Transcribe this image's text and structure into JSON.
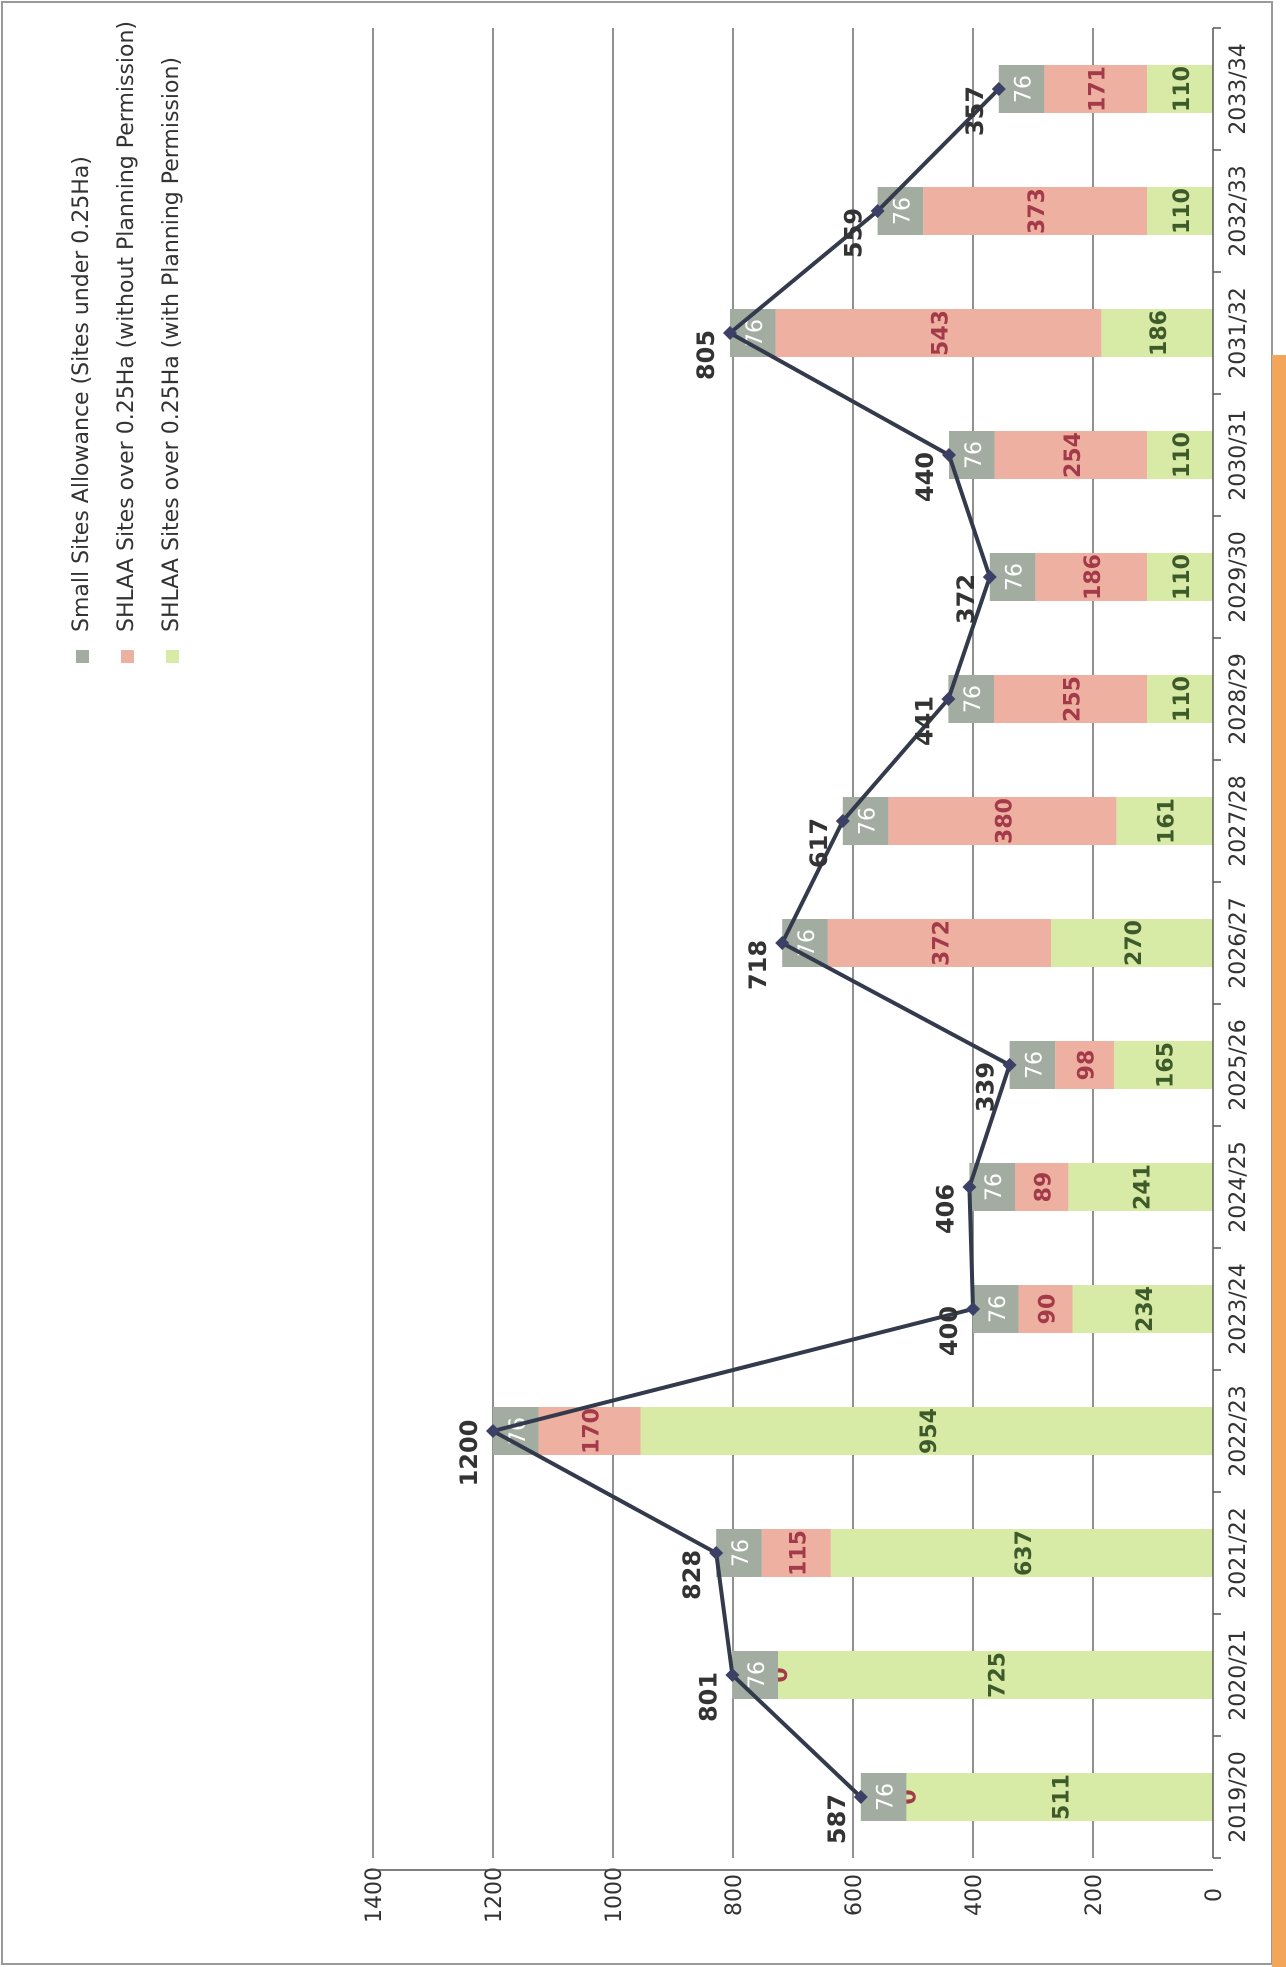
{
  "chart_data": {
    "type": "bar",
    "stacked": true,
    "orientation": "rotated-90-clockwise",
    "categories": [
      "2019/20",
      "2020/21",
      "2021/22",
      "2022/23",
      "2023/24",
      "2024/25",
      "2025/26",
      "2026/27",
      "2027/28",
      "2028/29",
      "2029/30",
      "2030/31",
      "2031/32",
      "2032/33",
      "2033/34"
    ],
    "series": [
      {
        "name": "SHLAA Sites over 0.25Ha (with Planning Permission)",
        "color": "#d7eaa6",
        "label_color": "#3f5a2a",
        "values": [
          511,
          725,
          637,
          954,
          234,
          241,
          165,
          270,
          161,
          110,
          110,
          110,
          186,
          110,
          110
        ]
      },
      {
        "name": "SHLAA Sites over 0.25Ha (without Planning Permission)",
        "color": "#eeb1a1",
        "label_color": "#a23a4a",
        "values": [
          0,
          0,
          115,
          170,
          90,
          89,
          98,
          372,
          380,
          255,
          186,
          254,
          543,
          373,
          171
        ]
      },
      {
        "name": "Small Sites Allowance (Sites under 0.25Ha)",
        "color": "#a3aca1",
        "label_color": "#ffffff",
        "values": [
          76,
          76,
          76,
          76,
          76,
          76,
          76,
          76,
          76,
          76,
          76,
          76,
          76,
          76,
          76
        ]
      }
    ],
    "line": {
      "values": [
        587,
        801,
        828,
        1200,
        400,
        406,
        339,
        718,
        617,
        441,
        372,
        440,
        805,
        559,
        357
      ],
      "color": "#333a4c"
    },
    "yaxis": {
      "ticks": [
        "0",
        "200",
        "400",
        "600",
        "800",
        "1000",
        "1200",
        "1400"
      ],
      "ylim": [
        0,
        1400
      ]
    },
    "grid": true,
    "legend": {
      "placement": "top-left"
    }
  }
}
